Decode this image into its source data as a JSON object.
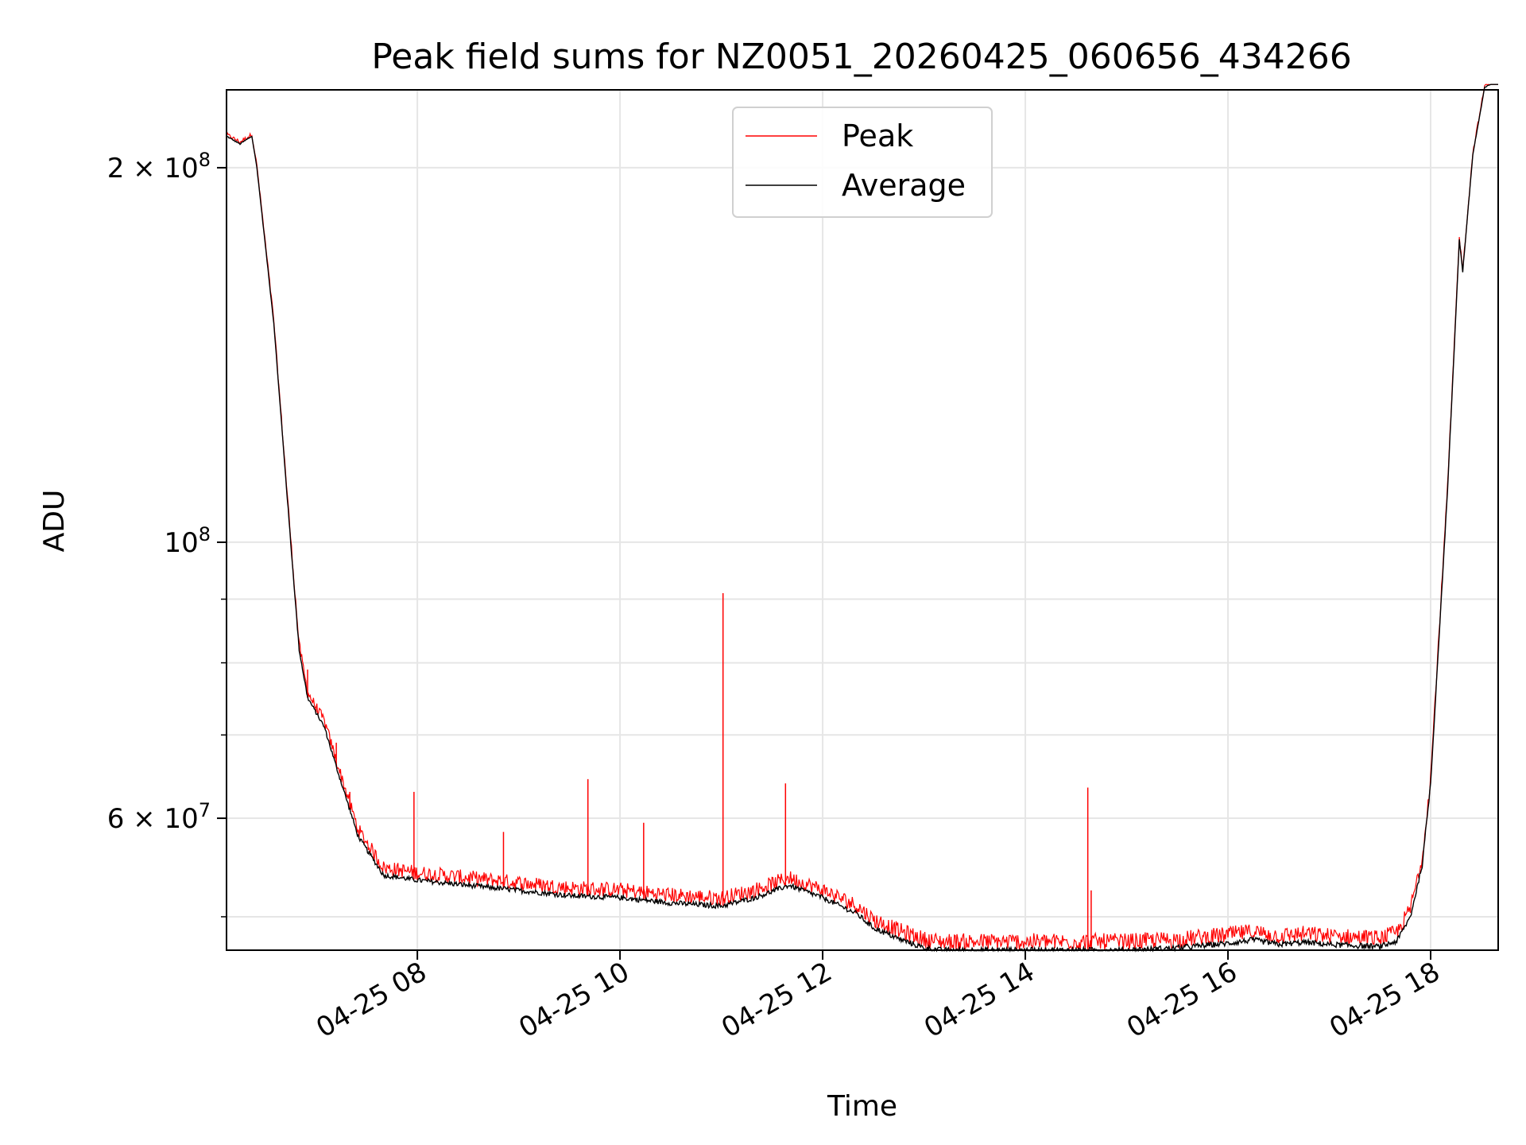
{
  "chart_data": {
    "type": "line",
    "title": "Peak field sums for NZ0051_20260425_060656_434266",
    "xlabel": "Time",
    "ylabel": "ADU",
    "x_type": "datetime",
    "xlim": [
      "2026-04-25 06:07",
      "2026-04-25 18:40"
    ],
    "y_scale": "log",
    "ylim": [
      47000000,
      231000000
    ],
    "grid": true,
    "legend": "top-center",
    "x_ticks": [
      {
        "value": "2026-04-25 08:00",
        "label": "04-25 08"
      },
      {
        "value": "2026-04-25 10:00",
        "label": "04-25 10"
      },
      {
        "value": "2026-04-25 12:00",
        "label": "04-25 12"
      },
      {
        "value": "2026-04-25 14:00",
        "label": "04-25 14"
      },
      {
        "value": "2026-04-25 16:00",
        "label": "04-25 16"
      },
      {
        "value": "2026-04-25 18:00",
        "label": "04-25 18"
      }
    ],
    "y_major_ticks": [
      {
        "value": 200000000,
        "mantissa": "2",
        "exponent": "8"
      },
      {
        "value": 100000000,
        "mantissa": "",
        "exponent": "8"
      },
      {
        "value": 60000000,
        "mantissa": "6",
        "exponent": "7"
      }
    ],
    "y_minor_ticks": [
      50000000,
      70000000,
      80000000,
      90000000
    ],
    "series": [
      {
        "name": "Peak",
        "color": "#ff0000",
        "noise_amplitude": 1500000,
        "spikes": [
          {
            "x": "2026-04-25 06:55",
            "y": 79000000
          },
          {
            "x": "2026-04-25 07:00",
            "y": 73500000
          },
          {
            "x": "2026-04-25 07:12",
            "y": 69000000
          },
          {
            "x": "2026-04-25 07:20",
            "y": 63000000
          },
          {
            "x": "2026-04-25 07:58",
            "y": 63000000
          },
          {
            "x": "2026-04-25 08:51",
            "y": 58500000
          },
          {
            "x": "2026-04-25 09:41",
            "y": 64500000
          },
          {
            "x": "2026-04-25 10:14",
            "y": 59500000
          },
          {
            "x": "2026-04-25 11:01",
            "y": 91000000
          },
          {
            "x": "2026-04-25 11:38",
            "y": 64000000
          },
          {
            "x": "2026-04-25 14:37",
            "y": 63500000
          },
          {
            "x": "2026-04-25 14:39",
            "y": 52500000
          }
        ]
      },
      {
        "name": "Average",
        "color": "#000000",
        "x": [
          "2026-04-25 06:07",
          "2026-04-25 06:15",
          "2026-04-25 06:22",
          "2026-04-25 06:25",
          "2026-04-25 06:35",
          "2026-04-25 06:45",
          "2026-04-25 06:50",
          "2026-04-25 06:55",
          "2026-04-25 07:05",
          "2026-04-25 07:12",
          "2026-04-25 07:25",
          "2026-04-25 07:40",
          "2026-04-25 08:00",
          "2026-04-25 08:30",
          "2026-04-25 09:00",
          "2026-04-25 09:30",
          "2026-04-25 10:00",
          "2026-04-25 10:30",
          "2026-04-25 11:00",
          "2026-04-25 11:20",
          "2026-04-25 11:40",
          "2026-04-25 12:00",
          "2026-04-25 12:20",
          "2026-04-25 12:30",
          "2026-04-25 12:45",
          "2026-04-25 13:00",
          "2026-04-25 13:10",
          "2026-04-25 13:30",
          "2026-04-25 14:00",
          "2026-04-25 15:00",
          "2026-04-25 15:30",
          "2026-04-25 16:00",
          "2026-04-25 16:15",
          "2026-04-25 16:30",
          "2026-04-25 16:45",
          "2026-04-25 17:00",
          "2026-04-25 17:30",
          "2026-04-25 17:40",
          "2026-04-25 17:48",
          "2026-04-25 17:55",
          "2026-04-25 18:00",
          "2026-04-25 18:10",
          "2026-04-25 18:17",
          "2026-04-25 18:19",
          "2026-04-25 18:25",
          "2026-04-25 18:32",
          "2026-04-25 18:40"
        ],
        "y": [
          212000000,
          209000000,
          212000000,
          200000000,
          150000000,
          100000000,
          82000000,
          75000000,
          71000000,
          66000000,
          58000000,
          54000000,
          53500000,
          53000000,
          52500000,
          52000000,
          51800000,
          51300000,
          51000000,
          51800000,
          53000000,
          51800000,
          50300000,
          49000000,
          48000000,
          47200000,
          47000000,
          47000000,
          47000000,
          47000000,
          47200000,
          47600000,
          47900000,
          47500000,
          47700000,
          47500000,
          47300000,
          47800000,
          50000000,
          55000000,
          64000000,
          110000000,
          175000000,
          165000000,
          205000000,
          232000000,
          235000000
        ]
      }
    ]
  }
}
